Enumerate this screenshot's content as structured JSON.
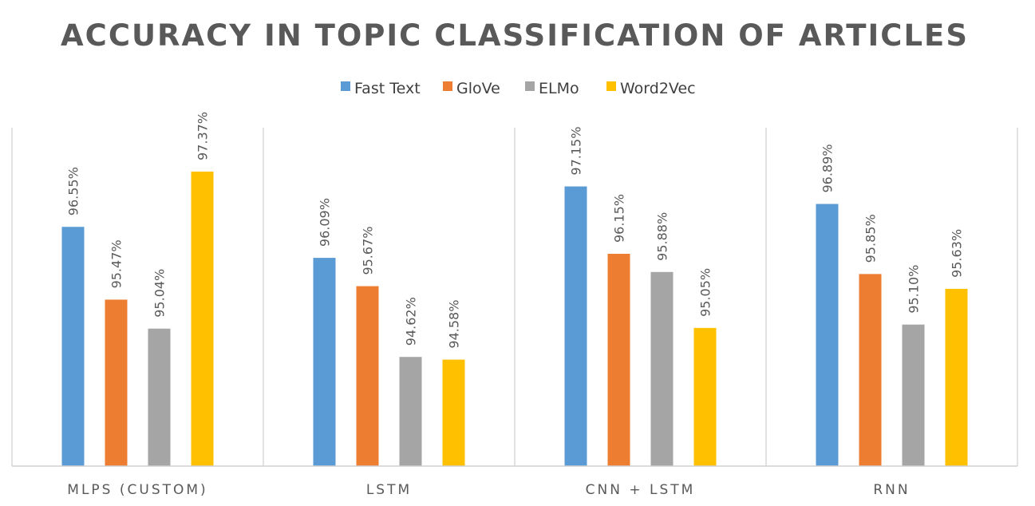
{
  "chart_data": {
    "type": "bar",
    "title": "ACCURACY IN TOPIC CLASSIFICATION OF ARTICLES",
    "categories": [
      "MLPS (CUSTOM)",
      "LSTM",
      "CNN + LSTM",
      "RNN"
    ],
    "series": [
      {
        "name": "Fast Text",
        "color": "#5B9BD5",
        "values": [
          96.55,
          96.09,
          97.15,
          96.89
        ],
        "labels": [
          "96.55%",
          "96.09%",
          "97.15%",
          "96.89%"
        ]
      },
      {
        "name": "GloVe",
        "color": "#ED7D31",
        "values": [
          95.47,
          95.67,
          96.15,
          95.85
        ],
        "labels": [
          "95.47%",
          "95.67%",
          "96.15%",
          "95.85%"
        ]
      },
      {
        "name": "ELMo",
        "color": "#A5A5A5",
        "values": [
          95.04,
          94.62,
          95.88,
          95.1
        ],
        "labels": [
          "95.04%",
          "94.62%",
          "95.88%",
          "95.10%"
        ]
      },
      {
        "name": "Word2Vec",
        "color": "#FFC000",
        "values": [
          97.37,
          94.58,
          95.05,
          95.63
        ],
        "labels": [
          "97.37%",
          "94.58%",
          "95.05%",
          "95.63%"
        ]
      }
    ],
    "ylim": [
      93.0,
      97.8
    ],
    "legend_position": "top",
    "grid": false,
    "xlabel": "",
    "ylabel": ""
  }
}
